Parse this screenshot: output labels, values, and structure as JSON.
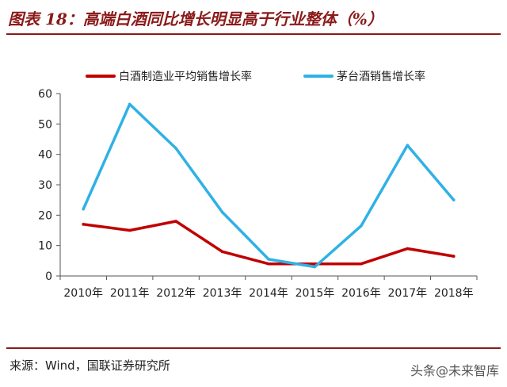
{
  "header": {
    "title": "图表 18：高端白酒同比增长明显高于行业整体（%）"
  },
  "footer": {
    "source": "来源：Wind，国联证券研究所",
    "watermark": "头条@未来智库"
  },
  "chart_data": {
    "type": "line",
    "title": "",
    "xlabel": "",
    "ylabel": "",
    "categories": [
      "2010年",
      "2011年",
      "2012年",
      "2013年",
      "2014年",
      "2015年",
      "2016年",
      "2017年",
      "2018年"
    ],
    "ylim": [
      0,
      60
    ],
    "yticks": [
      0,
      10,
      20,
      30,
      40,
      50,
      60
    ],
    "grid": false,
    "legend_position": "top",
    "series": [
      {
        "name": "白酒制造业平均销售增长率",
        "color": "#c00000",
        "values": [
          17,
          15,
          18,
          8,
          4,
          4,
          4,
          9,
          6.5
        ]
      },
      {
        "name": "茅台酒销售增长率",
        "color": "#2fb1e6",
        "values": [
          22,
          56.5,
          42,
          21,
          5.5,
          3,
          16.5,
          43,
          25
        ]
      }
    ]
  }
}
